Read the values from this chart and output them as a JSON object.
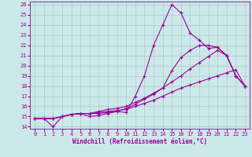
{
  "xlabel": "Windchill (Refroidissement éolien,°C)",
  "xlim": [
    -0.5,
    23.5
  ],
  "ylim": [
    13.8,
    26.3
  ],
  "yticks": [
    14,
    15,
    16,
    17,
    18,
    19,
    20,
    21,
    22,
    23,
    24,
    25,
    26
  ],
  "xticks": [
    0,
    1,
    2,
    3,
    4,
    5,
    6,
    7,
    8,
    9,
    10,
    11,
    12,
    13,
    14,
    15,
    16,
    17,
    18,
    19,
    20,
    21,
    22,
    23
  ],
  "bg_color": "#cce8e8",
  "line_color": "#990099",
  "grid_color": "#aacccc",
  "series": [
    [
      14.8,
      14.8,
      14.0,
      15.0,
      15.2,
      15.3,
      15.0,
      15.1,
      15.3,
      15.5,
      15.4,
      17.0,
      19.0,
      22.0,
      24.0,
      26.0,
      25.2,
      23.2,
      22.5,
      21.7,
      21.8,
      21.0,
      19.0,
      18.0
    ],
    [
      14.8,
      14.8,
      14.8,
      15.0,
      15.2,
      15.3,
      15.3,
      15.3,
      15.4,
      15.5,
      15.8,
      16.2,
      16.7,
      17.2,
      17.8,
      18.4,
      19.0,
      19.7,
      20.3,
      20.9,
      21.5,
      21.0,
      19.0,
      18.0
    ],
    [
      14.8,
      14.8,
      14.8,
      15.0,
      15.2,
      15.3,
      15.3,
      15.5,
      15.7,
      15.8,
      16.0,
      16.4,
      16.8,
      17.3,
      17.8,
      19.5,
      20.8,
      21.5,
      22.0,
      22.0,
      21.8,
      21.0,
      19.0,
      18.0
    ],
    [
      14.8,
      14.8,
      14.8,
      15.0,
      15.2,
      15.3,
      15.3,
      15.4,
      15.5,
      15.6,
      15.7,
      16.0,
      16.3,
      16.6,
      17.0,
      17.4,
      17.8,
      18.1,
      18.4,
      18.7,
      19.0,
      19.3,
      19.6,
      18.0
    ]
  ]
}
